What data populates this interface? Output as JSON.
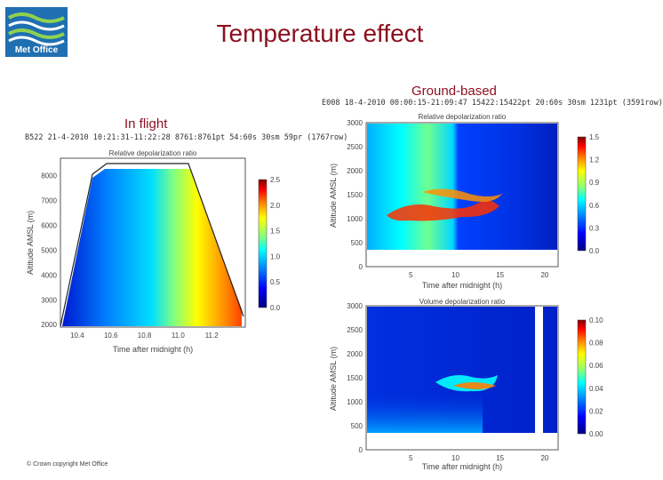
{
  "slide": {
    "title": "Temperature effect",
    "ground_label": "Ground-based",
    "flight_label": "In flight",
    "copyright": "© Crown copyright   Met Office"
  },
  "logo": {
    "text": "Met Office",
    "colors": {
      "background": "#1f6fb2",
      "waves": "#8fd14f"
    }
  },
  "colorscale": [
    "#000080",
    "#0000ff",
    "#0080ff",
    "#00ffff",
    "#80ff80",
    "#ffff00",
    "#ff8000",
    "#ff0000",
    "#800000"
  ],
  "chart_data": [
    {
      "type": "heatmap",
      "header": "B522 21-4-2010 10:21:31-11:22:28 8761:8761pt 54:60s 30sm 59pr (1767row)",
      "title": "Relative depolarization ratio",
      "xlabel": "Time after midnight (h)",
      "ylabel": "Altitude AMSL (m)",
      "xlim": [
        10.3,
        11.4
      ],
      "ylim": [
        1900,
        8700
      ],
      "x_ticks": [
        "10.4",
        "10.6",
        "10.8",
        "11.0",
        "11.2"
      ],
      "y_ticks": [
        "2000",
        "3000",
        "4000",
        "5000",
        "6000",
        "7000",
        "8000"
      ],
      "colorbar": {
        "min": 0.0,
        "max": 2.5,
        "ticks": [
          "0.0",
          "0.5",
          "1.0",
          "1.5",
          "2.0",
          "2.5"
        ]
      }
    },
    {
      "type": "heatmap",
      "header": "E008 18-4-2010 00:00:15-21:09:47 15422:15422pt 20:60s 30sm 1231pt (3591row)",
      "title": "Relative depolarization ratio",
      "xlabel": "Time after midnight (h)",
      "ylabel": "Altitude AMSL (m)",
      "xlim": [
        0,
        21.5
      ],
      "ylim": [
        0,
        3000
      ],
      "x_ticks": [
        "5",
        "10",
        "15",
        "20"
      ],
      "y_ticks": [
        "0",
        "500",
        "1000",
        "1500",
        "2000",
        "2500",
        "3000"
      ],
      "colorbar": {
        "min": 0.0,
        "max": 1.5,
        "ticks": [
          "0.0",
          "0.3",
          "0.6",
          "0.9",
          "1.2",
          "1.5"
        ]
      }
    },
    {
      "type": "heatmap",
      "title": "Volume depolarization ratio",
      "xlabel": "Time after midnight (h)",
      "ylabel": "Altitude AMSL (m)",
      "xlim": [
        0,
        21.5
      ],
      "ylim": [
        0,
        3000
      ],
      "x_ticks": [
        "5",
        "10",
        "15",
        "20"
      ],
      "y_ticks": [
        "0",
        "500",
        "1000",
        "1500",
        "2000",
        "2500",
        "3000"
      ],
      "colorbar": {
        "min": 0.0,
        "max": 0.1,
        "ticks": [
          "0.00",
          "0.02",
          "0.04",
          "0.06",
          "0.08",
          "0.10"
        ]
      }
    }
  ]
}
